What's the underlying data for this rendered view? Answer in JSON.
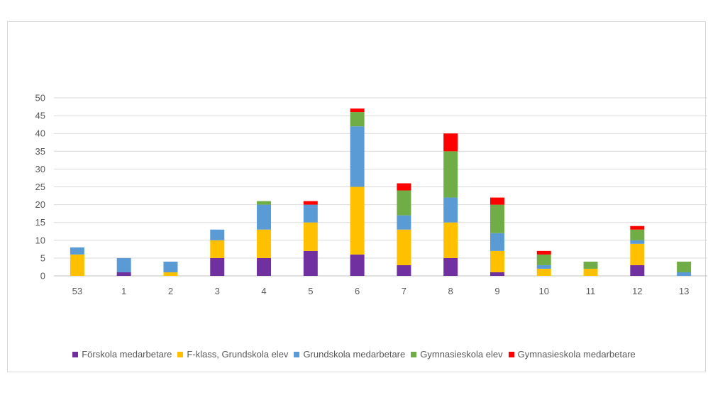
{
  "chart_data": {
    "type": "bar",
    "stacked": true,
    "title": "",
    "xlabel": "",
    "ylabel": "",
    "ylim": [
      0,
      50
    ],
    "yticks": [
      0,
      5,
      10,
      15,
      20,
      25,
      30,
      35,
      40,
      45,
      50
    ],
    "grid": true,
    "legend_position": "bottom",
    "categories": [
      "53",
      "1",
      "2",
      "3",
      "4",
      "5",
      "6",
      "7",
      "8",
      "9",
      "10",
      "11",
      "12",
      "13"
    ],
    "series": [
      {
        "name": "Förskola medarbetare",
        "color": "#7030a0",
        "values": [
          0,
          1,
          0,
          5,
          5,
          7,
          6,
          3,
          5,
          1,
          0,
          0,
          3,
          0
        ]
      },
      {
        "name": "F-klass, Grundskola elev",
        "color": "#ffc000",
        "values": [
          6,
          0,
          1,
          5,
          8,
          8,
          19,
          10,
          10,
          6,
          2,
          2,
          6,
          0
        ]
      },
      {
        "name": "Grundskola medarbetare",
        "color": "#5b9bd5",
        "values": [
          2,
          4,
          3,
          3,
          7,
          5,
          17,
          4,
          7,
          5,
          1,
          0,
          1,
          1
        ]
      },
      {
        "name": "Gymnasieskola elev",
        "color": "#70ad47",
        "values": [
          0,
          0,
          0,
          0,
          1,
          0,
          4,
          7,
          13,
          8,
          3,
          2,
          3,
          3
        ]
      },
      {
        "name": "Gymnasieskola medarbetare",
        "color": "#ff0000",
        "values": [
          0,
          0,
          0,
          0,
          0,
          1,
          1,
          2,
          5,
          2,
          1,
          0,
          1,
          0
        ]
      }
    ]
  }
}
